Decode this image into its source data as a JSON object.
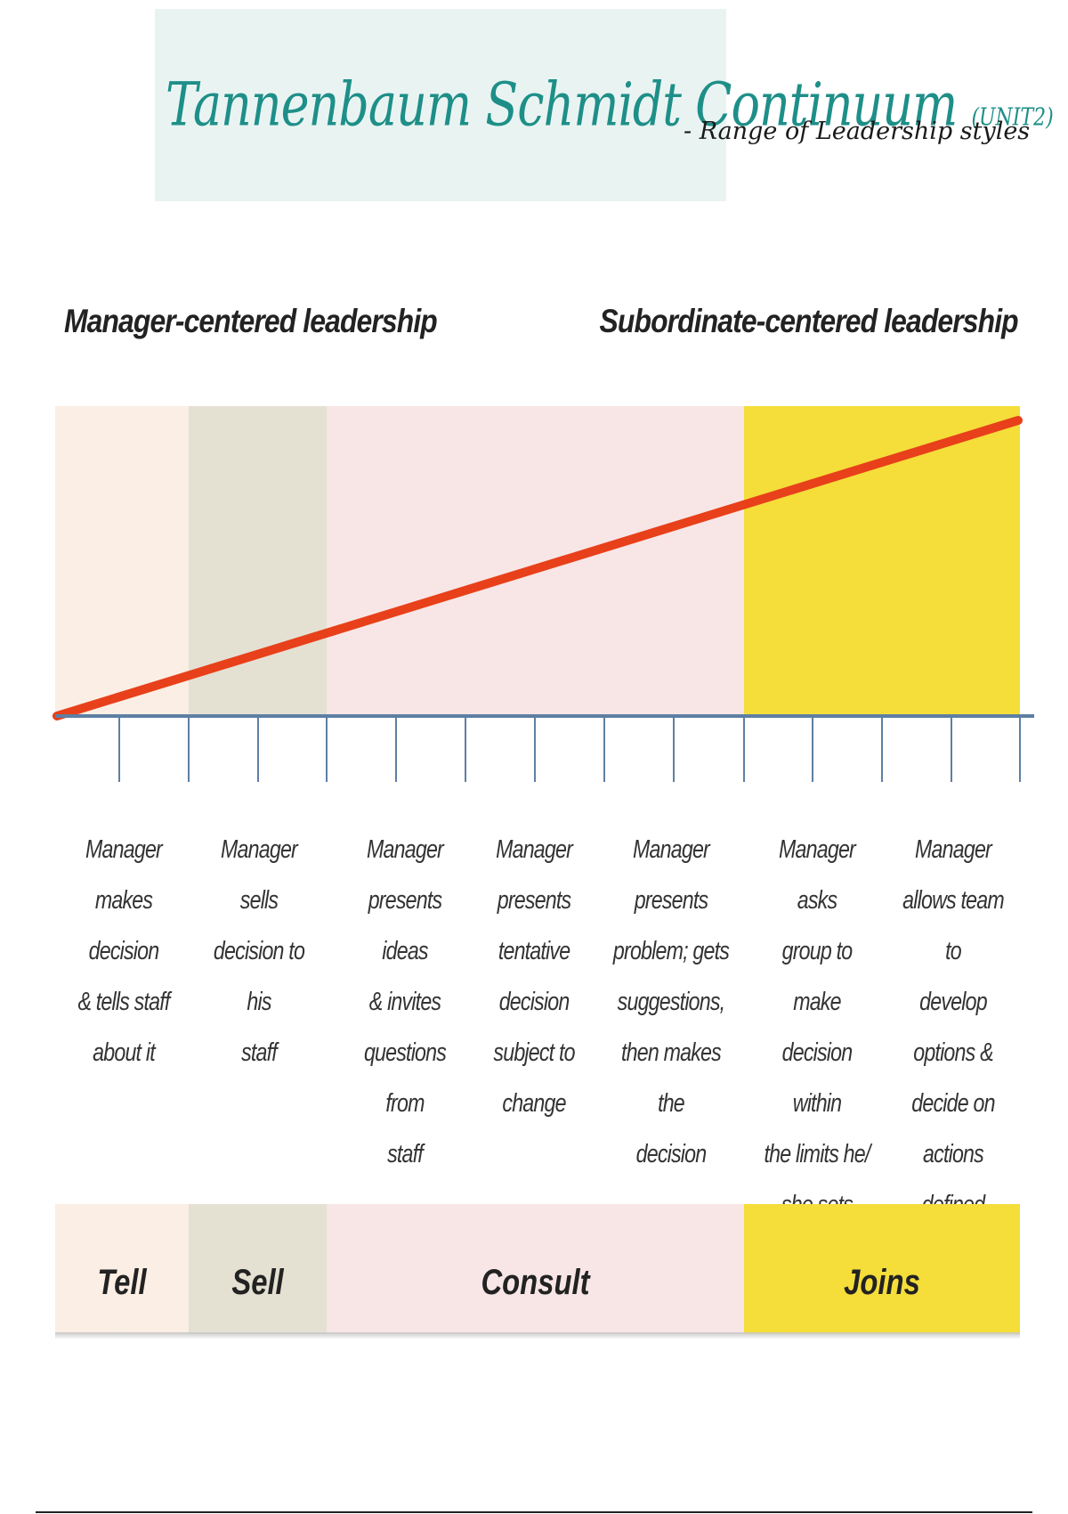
{
  "title": {
    "main": "Tannenbaum Schmidt Continuum",
    "unit": "(UNIT2)",
    "subtitle": "- Range of Leadership styles"
  },
  "headings": {
    "left": "Manager-centered leadership",
    "right": "Subordinate-centered leadership"
  },
  "colors": {
    "tell": "#fbeee4",
    "sell": "#e4e1d3",
    "consult": "#f8e6e6",
    "joins": "#f5dd3a",
    "line": "#e8401a",
    "axis": "#5e7fa3"
  },
  "descriptions": [
    "Manager\nmakes decision\n& tells staff\nabout it",
    "Manager sells\ndecision to his\nstaff",
    "Manager\npresents ideas\n& invites\nquestions from\nstaff",
    "Manager\npresents\ntentative\ndecision\nsubject to\nchange",
    "Manager\npresents\nproblem; gets\nsuggestions,\nthen makes the\ndecision",
    "Manager asks\ngroup to make\ndecision within\nthe limits he/\nshe sets",
    "Manager\nallows team to\ndevelop\noptions &\ndecide on\nactions defined\nby manager"
  ],
  "styles": [
    "Tell",
    "Sell",
    "Consult",
    "Joins"
  ]
}
